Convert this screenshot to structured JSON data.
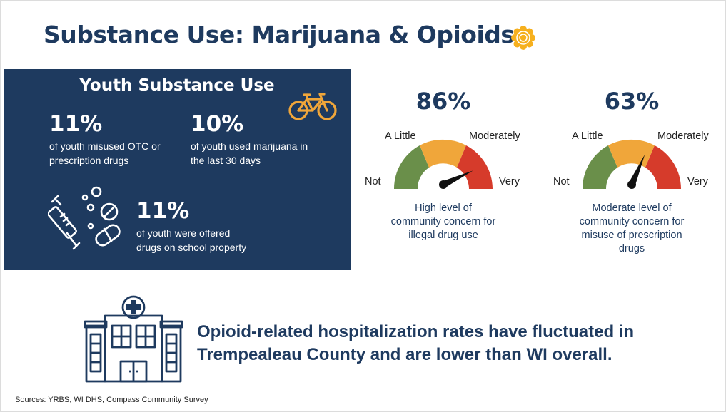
{
  "title": "Substance Use: Marijuana & Opioids",
  "icon": "sun-icon",
  "colors": {
    "navy": "#1e3a5f",
    "gauge_green": "#6a8f4a",
    "gauge_orange": "#f0a63a",
    "gauge_red": "#d63b2b",
    "accent": "#f0a63a"
  },
  "youth": {
    "title": "Youth Substance Use",
    "icon": "bicycle-icon",
    "stats": [
      {
        "pct": "11%",
        "desc_1": "of youth misused OTC or",
        "desc_2": "prescription drugs"
      },
      {
        "pct": "10%",
        "desc_1": "of youth used marijuana in",
        "desc_2": "the last 30 days"
      },
      {
        "pct": "11%",
        "desc_1": "of youth were offered",
        "desc_2": "drugs on school property",
        "icon": "syringe-pills-icon"
      }
    ]
  },
  "gauges": [
    {
      "pct": "86%",
      "needle_level": 0.86,
      "labels": {
        "not": "Not",
        "a_little": "A Little",
        "moderately": "Moderately",
        "very": "Very"
      },
      "caption": [
        "High level of",
        "community concern for",
        "illegal drug use"
      ]
    },
    {
      "pct": "63%",
      "needle_level": 0.63,
      "labels": {
        "not": "Not",
        "a_little": "A Little",
        "moderately": "Moderately",
        "very": "Very"
      },
      "caption": [
        "Moderate level of",
        "community concern for",
        "misuse of prescription",
        "drugs"
      ]
    }
  ],
  "opioid": {
    "icon": "hospital-icon",
    "line_1": "Opioid-related hospitalization rates have fluctuated in",
    "line_2": "Trempealeau County and are lower than WI overall."
  },
  "sources": "Sources: YRBS, WI DHS, Compass Community Survey"
}
